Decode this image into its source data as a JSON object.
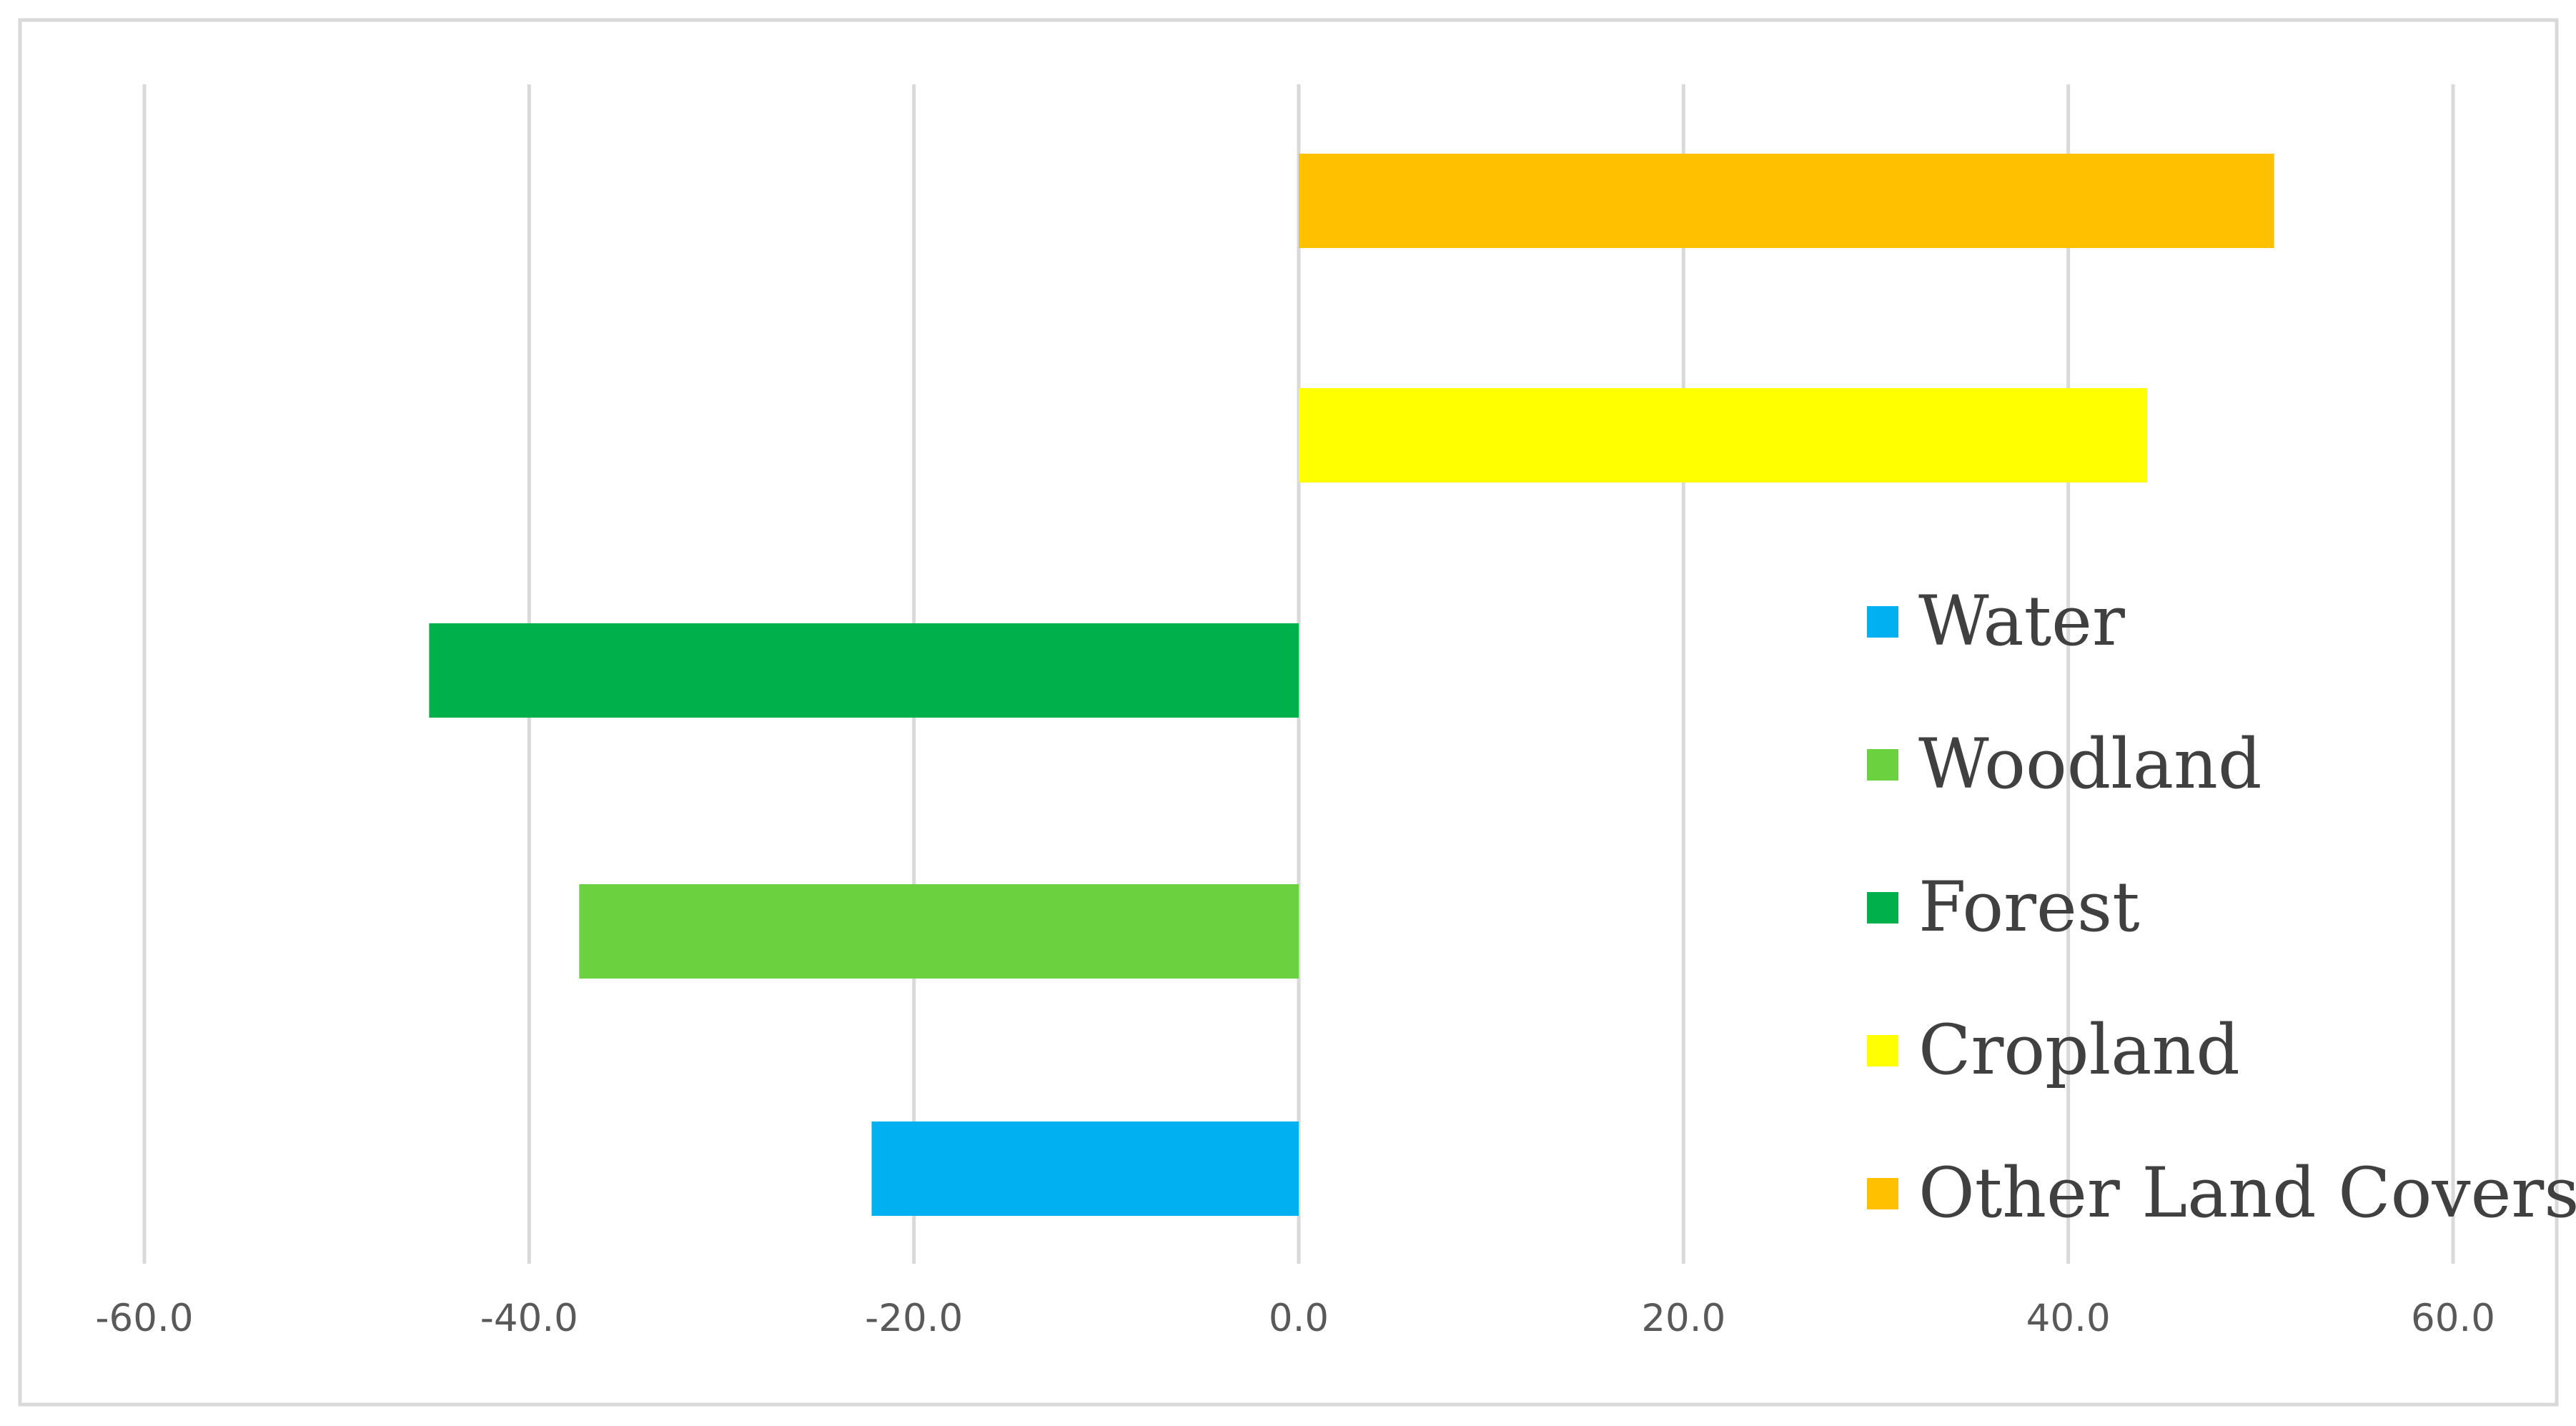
{
  "chart_data": {
    "type": "bar",
    "orientation": "horizontal",
    "title": "",
    "xlabel": "",
    "ylabel": "",
    "xlim": [
      -60,
      60
    ],
    "x_ticks": [
      "-60.0",
      "-40.0",
      "-20.0",
      "0.0",
      "20.0",
      "40.0",
      "60.0"
    ],
    "x_tick_values": [
      -60,
      -40,
      -20,
      0,
      20,
      40,
      60
    ],
    "grid": "vertical",
    "legend_position": "right",
    "categories": [
      "Water",
      "Woodland",
      "Forest",
      "Cropland",
      "Other Land Covers"
    ],
    "values": [
      -22.2,
      -37.4,
      -45.2,
      44.1,
      50.7
    ],
    "colors": [
      "#00B0F0",
      "#6CD13F",
      "#00B04A",
      "#FFFF00",
      "#FFC000"
    ],
    "legend": [
      {
        "label": "Water",
        "color": "#00B0F0"
      },
      {
        "label": "Woodland",
        "color": "#6CD13F"
      },
      {
        "label": "Forest",
        "color": "#00B04A"
      },
      {
        "label": "Cropland",
        "color": "#FFFF00"
      },
      {
        "label": "Other Land Covers",
        "color": "#FFC000"
      }
    ]
  }
}
